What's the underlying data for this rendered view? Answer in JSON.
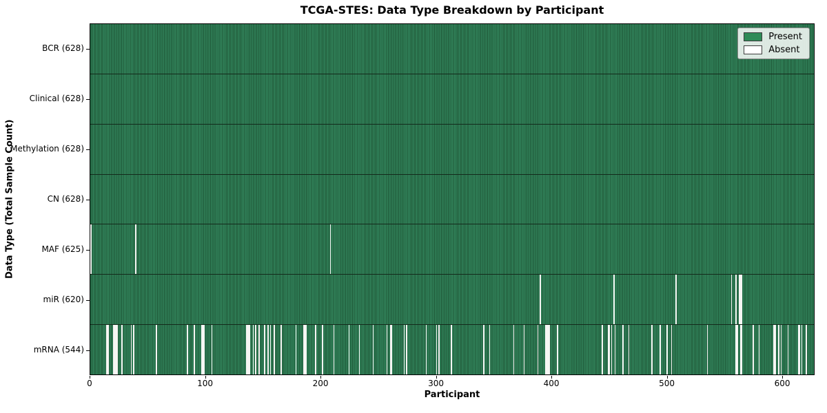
{
  "chart_data": {
    "type": "heatmap",
    "title": "TCGA-STES: Data Type Breakdown by Participant",
    "xlabel": "Participant",
    "ylabel": "Data Type (Total Sample Count)",
    "x_ticks": [
      0,
      100,
      200,
      300,
      400,
      500,
      600
    ],
    "x_range": [
      0,
      628
    ],
    "total_participants": 628,
    "grid": false,
    "colors": {
      "present": "#2e8b57",
      "present_edge": "#1e5636",
      "absent": "#f6f6f4",
      "row_divider": "#13291a"
    },
    "legend": {
      "position": "upper right",
      "entries": [
        {
          "label": "Present",
          "color": "#2e8b57"
        },
        {
          "label": "Absent",
          "color": "#ffffff"
        }
      ]
    },
    "rows": [
      {
        "label": "BCR (628)",
        "data_type": "BCR",
        "present_count": 628,
        "absent_participants": []
      },
      {
        "label": "Clinical (628)",
        "data_type": "Clinical",
        "present_count": 628,
        "absent_participants": []
      },
      {
        "label": "Methylation (628)",
        "data_type": "Methylation",
        "present_count": 628,
        "absent_participants": []
      },
      {
        "label": "CN (628)",
        "data_type": "CN",
        "present_count": 628,
        "absent_participants": []
      },
      {
        "label": "MAF (625)",
        "data_type": "MAF",
        "present_count": 625,
        "absent_participants": [
          0,
          39,
          208
        ]
      },
      {
        "label": "miR (620)",
        "data_type": "miR",
        "present_count": 620,
        "absent_participants": [
          390,
          454,
          508,
          556,
          560,
          563,
          564,
          565
        ]
      },
      {
        "label": "mRNA (544)",
        "data_type": "mRNA",
        "present_count": 544,
        "absent_participants": [
          14,
          15,
          20,
          21,
          22,
          23,
          27,
          35,
          37,
          57,
          84,
          90,
          96,
          97,
          98,
          105,
          135,
          136,
          137,
          138,
          141,
          143,
          146,
          151,
          154,
          156,
          159,
          165,
          178,
          185,
          186,
          187,
          195,
          201,
          211,
          224,
          233,
          245,
          257,
          260,
          261,
          272,
          274,
          291,
          300,
          302,
          313,
          341,
          346,
          367,
          376,
          388,
          395,
          396,
          397,
          398,
          405,
          444,
          449,
          450,
          452,
          455,
          462,
          467,
          487,
          494,
          500,
          504,
          535,
          560,
          561,
          564,
          565,
          575,
          580,
          593,
          594,
          597,
          599,
          605,
          614,
          615,
          617,
          621
        ]
      }
    ]
  }
}
